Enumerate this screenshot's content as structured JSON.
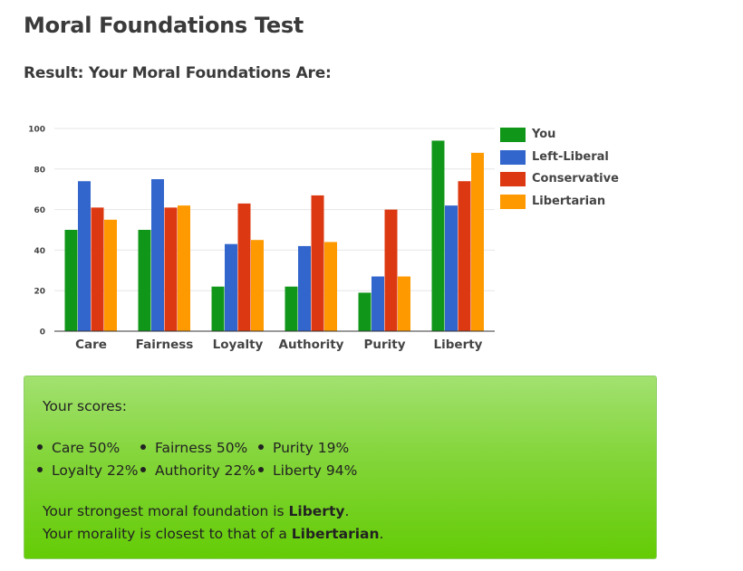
{
  "page": {
    "title": "Moral Foundations Test",
    "result_heading": "Result: Your Moral Foundations Are:"
  },
  "chart_data": {
    "type": "bar",
    "categories": [
      "Care",
      "Fairness",
      "Loyalty",
      "Authority",
      "Purity",
      "Liberty"
    ],
    "series": [
      {
        "name": "You",
        "color": "#109618",
        "values": [
          50,
          50,
          22,
          22,
          19,
          94
        ]
      },
      {
        "name": "Left-Liberal",
        "color": "#3366cc",
        "values": [
          74,
          75,
          43,
          42,
          27,
          62
        ]
      },
      {
        "name": "Conservative",
        "color": "#dc3912",
        "values": [
          61,
          61,
          63,
          67,
          60,
          74
        ]
      },
      {
        "name": "Libertarian",
        "color": "#ff9900",
        "values": [
          55,
          62,
          45,
          44,
          27,
          88
        ]
      }
    ],
    "ylim": [
      0,
      100
    ],
    "yticks": [
      0,
      20,
      40,
      60,
      80,
      100
    ],
    "grid": true,
    "legend_position": "right"
  },
  "results": {
    "scores_title": "Your scores:",
    "scores": [
      {
        "text": "Care 50%"
      },
      {
        "text": "Fairness 50%"
      },
      {
        "text": "Purity 19%"
      },
      {
        "text": "Loyalty 22%"
      },
      {
        "text": "Authority 22%"
      },
      {
        "text": "Liberty 94%"
      }
    ],
    "strongest_prefix": "Your strongest moral foundation is ",
    "strongest_value": "Liberty",
    "strongest_suffix": ".",
    "closest_prefix": "Your morality is closest to that of a ",
    "closest_value": "Libertarian",
    "closest_suffix": "."
  }
}
